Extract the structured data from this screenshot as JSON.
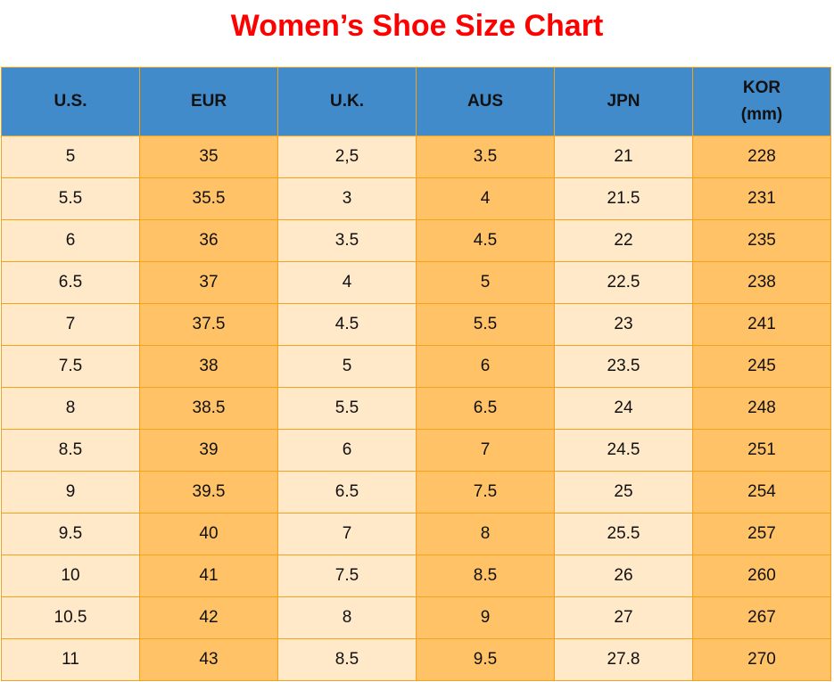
{
  "title": "Women’s Shoe Size Chart",
  "colors": {
    "title": "#ff0000",
    "header_bg": "#428bca",
    "light_cell": "#ffe9c9",
    "dark_cell": "#ffc266",
    "border": "#f5a21b"
  },
  "table": {
    "headers": [
      [
        "U.S."
      ],
      [
        "EUR"
      ],
      [
        "U.K."
      ],
      [
        "AUS"
      ],
      [
        "JPN"
      ],
      [
        "KOR",
        "(mm)"
      ]
    ],
    "rows": [
      [
        "5",
        "35",
        "2,5",
        "3.5",
        "21",
        "228"
      ],
      [
        "5.5",
        "35.5",
        "3",
        "4",
        "21.5",
        "231"
      ],
      [
        "6",
        "36",
        "3.5",
        "4.5",
        "22",
        "235"
      ],
      [
        "6.5",
        "37",
        "4",
        "5",
        "22.5",
        "238"
      ],
      [
        "7",
        "37.5",
        "4.5",
        "5.5",
        "23",
        "241"
      ],
      [
        "7.5",
        "38",
        "5",
        "6",
        "23.5",
        "245"
      ],
      [
        "8",
        "38.5",
        "5.5",
        "6.5",
        "24",
        "248"
      ],
      [
        "8.5",
        "39",
        "6",
        "7",
        "24.5",
        "251"
      ],
      [
        "9",
        "39.5",
        "6.5",
        "7.5",
        "25",
        "254"
      ],
      [
        "9.5",
        "40",
        "7",
        "8",
        "25.5",
        "257"
      ],
      [
        "10",
        "41",
        "7.5",
        "8.5",
        "26",
        "260"
      ],
      [
        "10.5",
        "42",
        "8",
        "9",
        "27",
        "267"
      ],
      [
        "11",
        "43",
        "8.5",
        "9.5",
        "27.8",
        "270"
      ]
    ]
  }
}
